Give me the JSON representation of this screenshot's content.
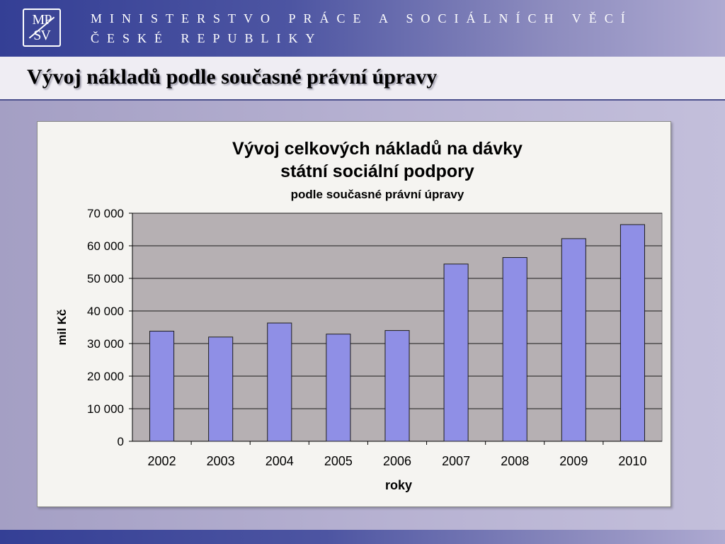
{
  "header": {
    "logo_line1": "MP",
    "logo_line2": "SV",
    "ministry_line1": "MINISTERSTVO PRÁCE A SOCIÁLNÍCH VĚCÍ",
    "ministry_line2": "ČESKÉ REPUBLIKY"
  },
  "slide": {
    "title": "Vývoj nákladů podle současné právní úpravy"
  },
  "chart_data": {
    "type": "bar",
    "title": "Vývoj celkových nákladů na dávky",
    "title_line2": "státní sociální podpory",
    "subtitle": "podle současné právní úpravy",
    "xlabel": "roky",
    "ylabel": "mil Kč",
    "categories": [
      "2002",
      "2003",
      "2004",
      "2005",
      "2006",
      "2007",
      "2008",
      "2009",
      "2010"
    ],
    "values": [
      33800,
      32000,
      36300,
      32900,
      34000,
      54400,
      56400,
      62200,
      66500
    ],
    "ylim": [
      0,
      70000
    ],
    "yticks": [
      0,
      10000,
      20000,
      30000,
      40000,
      50000,
      60000,
      70000
    ],
    "ytick_labels": [
      "0",
      "10 000",
      "20 000",
      "30 000",
      "40 000",
      "50 000",
      "60 000",
      "70 000"
    ],
    "grid": true,
    "bar_color": "#8f8fe6",
    "plot_background": "#b6b0b3"
  }
}
